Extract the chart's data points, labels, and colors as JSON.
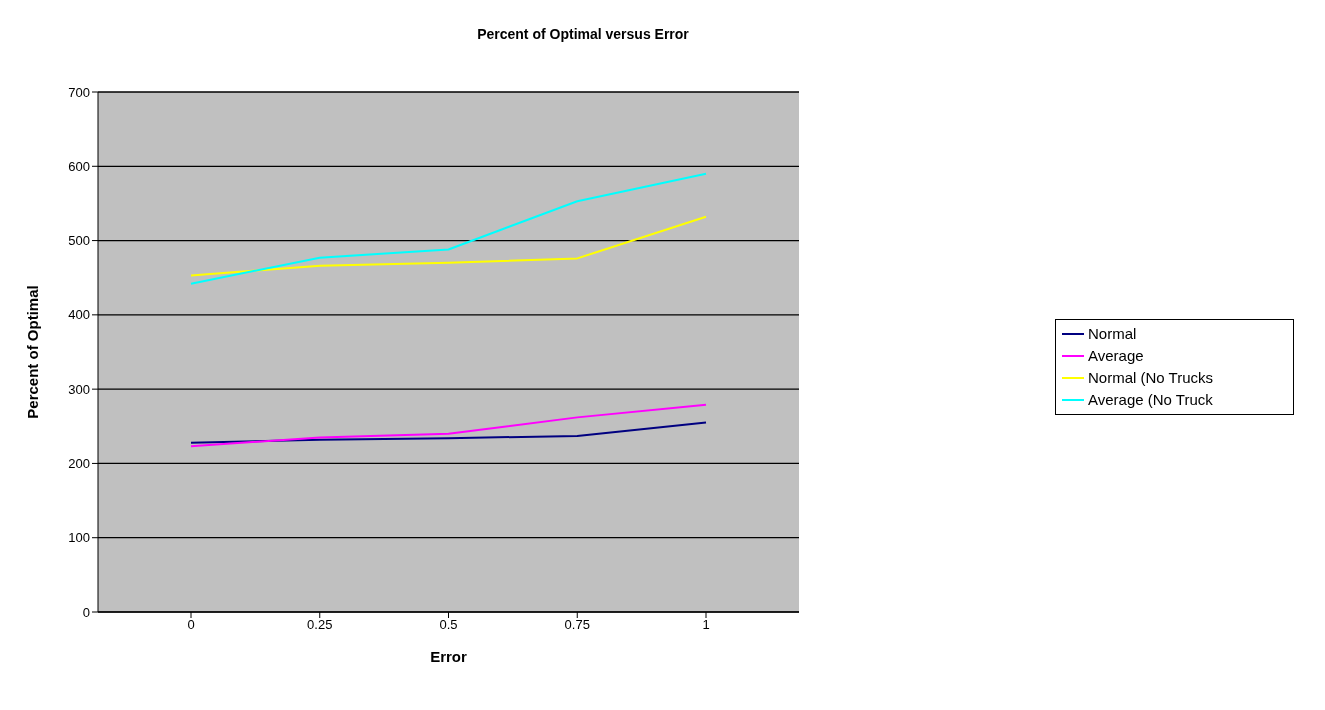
{
  "chart_data": {
    "type": "line",
    "title": "Percent of Optimal versus Error",
    "xlabel": "Error",
    "ylabel": "Percent of Optimal",
    "categories": [
      "0",
      "0.25",
      "0.5",
      "0.75",
      "1"
    ],
    "series": [
      {
        "name": "Normal",
        "color": "#000080",
        "values": [
          228,
          232,
          234,
          237,
          255
        ]
      },
      {
        "name": "Average",
        "color": "#ff00ff",
        "values": [
          223,
          235,
          240,
          262,
          279
        ]
      },
      {
        "name": "Normal (No Trucks",
        "color": "#ffff00",
        "values": [
          453,
          466,
          470,
          476,
          532
        ]
      },
      {
        "name": "Average (No Truck",
        "color": "#00ffff",
        "values": [
          442,
          477,
          488,
          553,
          590
        ]
      }
    ],
    "ylim": [
      0,
      700
    ],
    "yticks": [
      0,
      100,
      200,
      300,
      400,
      500,
      600,
      700
    ],
    "grid": "y",
    "legend": "right",
    "marker": "none",
    "line_style": "solid"
  }
}
